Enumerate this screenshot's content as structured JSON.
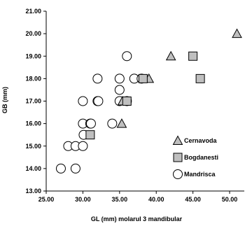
{
  "chart_data": {
    "type": "scatter",
    "title": "",
    "xlabel": "GL (mm) molarul 3 mandibular",
    "ylabel": "GB (mm)",
    "xlim": [
      25,
      52
    ],
    "ylim": [
      13,
      21
    ],
    "x_ticks": [
      "25.00",
      "30.00",
      "35.00",
      "40.00",
      "45.00",
      "50.00"
    ],
    "x_tick_values": [
      25,
      30,
      35,
      40,
      45,
      50
    ],
    "y_ticks": [
      "13.00",
      "14.00",
      "15.00",
      "16.00",
      "17.00",
      "18.00",
      "19.00",
      "20.00",
      "21.00"
    ],
    "y_tick_values": [
      13,
      14,
      15,
      16,
      17,
      18,
      19,
      20,
      21
    ],
    "grid": false,
    "legend_position": "bottom-right",
    "series": [
      {
        "name": "Cernavoda",
        "marker": "triangle",
        "color": "#bfbfbf",
        "points": [
          [
            51,
            20
          ],
          [
            42,
            19
          ],
          [
            39,
            18
          ],
          [
            35.3,
            16
          ],
          [
            35.4,
            17
          ]
        ]
      },
      {
        "name": "Bogdanesti",
        "marker": "square",
        "color": "#bfbfbf",
        "points": [
          [
            45,
            19
          ],
          [
            46,
            18
          ],
          [
            38.2,
            18
          ],
          [
            36,
            17
          ],
          [
            31,
            15.5
          ]
        ]
      },
      {
        "name": "Mandrisca",
        "marker": "circle",
        "color": "#ffffff",
        "points": [
          [
            27,
            14
          ],
          [
            29,
            14
          ],
          [
            28,
            15
          ],
          [
            29,
            15
          ],
          [
            30,
            15
          ],
          [
            30.1,
            15.5
          ],
          [
            30,
            16
          ],
          [
            31,
            16
          ],
          [
            31.1,
            16
          ],
          [
            34,
            16
          ],
          [
            30,
            17
          ],
          [
            32,
            17
          ],
          [
            32.1,
            17
          ],
          [
            35,
            17
          ],
          [
            36,
            17
          ],
          [
            35,
            17.5
          ],
          [
            32,
            18
          ],
          [
            35,
            18
          ],
          [
            37,
            18
          ],
          [
            38,
            18
          ],
          [
            36,
            19
          ]
        ]
      }
    ]
  }
}
